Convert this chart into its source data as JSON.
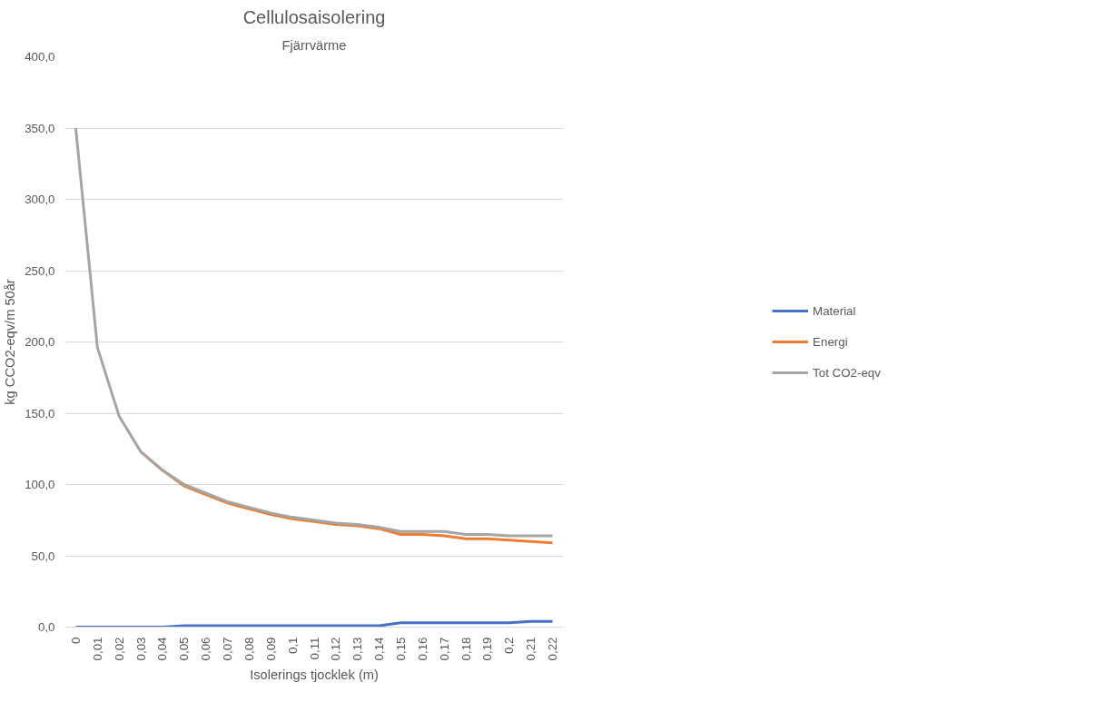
{
  "chart_data": {
    "type": "line",
    "title": "Cellulosaisolering",
    "subtitle": "Fjärrvärme",
    "xlabel": "Isolerings tjocklek (m)",
    "ylabel": "kg CCO2-eqv/m 50år",
    "categories": [
      "0",
      "0,01",
      "0,02",
      "0,03",
      "0,04",
      "0,05",
      "0,06",
      "0,07",
      "0,08",
      "0,09",
      "0,1",
      "0,11",
      "0,12",
      "0,13",
      "0,14",
      "0,15",
      "0,16",
      "0,17",
      "0,18",
      "0,19",
      "0,2",
      "0,21",
      "0,22"
    ],
    "series": [
      {
        "name": "Material",
        "color": "#4472c4",
        "values": [
          0,
          0,
          0,
          0,
          0,
          1,
          1,
          1,
          1,
          1,
          1,
          1,
          1,
          1,
          1,
          3,
          3,
          3,
          3,
          3,
          3,
          4,
          4
        ]
      },
      {
        "name": "Energi",
        "color": "#ed7d31",
        "values": [
          null,
          null,
          null,
          123,
          110,
          99,
          93,
          87,
          83,
          79,
          76,
          74,
          72,
          71,
          69,
          65,
          65,
          64,
          62,
          62,
          61,
          60,
          59
        ]
      },
      {
        "name": "Tot CO2-eqv",
        "color": "#a5a5a5",
        "values": [
          350,
          196,
          148,
          123,
          110,
          100,
          94,
          88,
          84,
          80,
          77,
          75,
          73,
          72,
          70,
          67,
          67,
          67,
          65,
          65,
          64,
          64,
          64
        ]
      }
    ],
    "ylim": [
      0,
      400
    ],
    "yticks": [
      {
        "value": 0,
        "label": "0,0"
      },
      {
        "value": 50,
        "label": "50,0"
      },
      {
        "value": 100,
        "label": "100,0"
      },
      {
        "value": 150,
        "label": "150,0"
      },
      {
        "value": 200,
        "label": "200,0"
      },
      {
        "value": 250,
        "label": "250,0"
      },
      {
        "value": 300,
        "label": "300,0"
      },
      {
        "value": 350,
        "label": "350,0"
      },
      {
        "value": 400,
        "label": "400,0"
      }
    ],
    "grid": "y",
    "legend": "right",
    "marker": "none",
    "line_style": "solid"
  }
}
